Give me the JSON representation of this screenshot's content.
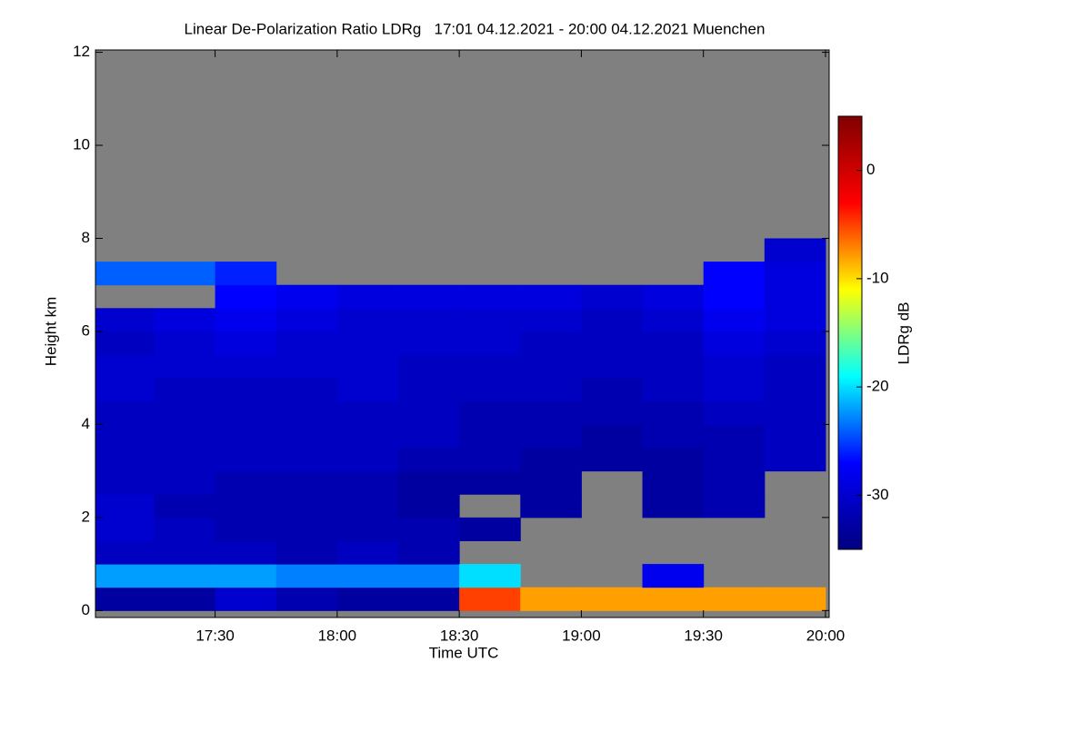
{
  "chart_data": {
    "type": "heatmap",
    "title": "Linear De-Polarization Ratio LDRg   17:01 04.12.2021 - 20:00 04.12.2021 Muenchen",
    "xlabel": "Time UTC",
    "ylabel": "Height km",
    "colorbar_label": "LDRg dB",
    "xlim": [
      17.01,
      20.015
    ],
    "ylim": [
      -0.15,
      12.05
    ],
    "xticks": [
      {
        "value": 17.5,
        "label": "17:30"
      },
      {
        "value": 18,
        "label": "18:00"
      },
      {
        "value": 18.5,
        "label": "18:30"
      },
      {
        "value": 19,
        "label": "19:00"
      },
      {
        "value": 19.5,
        "label": "19:30"
      },
      {
        "value": 20,
        "label": "20:00"
      }
    ],
    "yticks": [
      0,
      2,
      4,
      6,
      8,
      10,
      12
    ],
    "clim": [
      -35,
      5
    ],
    "cticks": [
      0,
      -10,
      -20,
      -30
    ],
    "colormap": [
      "#000080",
      "#0000ff",
      "#00ffff",
      "#ffff00",
      "#ff0000",
      "#800000"
    ],
    "missing_color": "#808080",
    "xbins": [
      17,
      17.25,
      17.5,
      17.75,
      18,
      18.25,
      18.5,
      18.75,
      19,
      19.25,
      19.5,
      19.75,
      20
    ],
    "ybins": [
      0,
      0.5,
      1,
      1.5,
      2,
      2.5,
      3,
      3.5,
      4,
      4.5,
      5,
      5.5,
      6,
      6.5,
      7,
      7.5,
      8
    ],
    "z": [
      [
        -33,
        -22,
        -31,
        -30,
        -30,
        -31,
        -31,
        -31,
        -31,
        -30,
        -30,
        -31,
        -30,
        null,
        -24,
        null
      ],
      [
        -33,
        -22,
        -31,
        -31,
        -32,
        -31,
        -31,
        -31,
        -31,
        -31,
        -30,
        -30,
        -29,
        null,
        -24,
        null
      ],
      [
        -30,
        -22,
        -31,
        -32,
        -32,
        -32,
        -31,
        -31,
        -31,
        -31,
        -30,
        -29,
        -28,
        -27,
        -26,
        null
      ],
      [
        -32,
        -23,
        -32,
        -32,
        -32,
        -32,
        -31,
        -31,
        -31,
        -31,
        -30,
        -30,
        -29,
        -28,
        null,
        null
      ],
      [
        -33,
        -23,
        -31,
        -32,
        -32,
        -32,
        -31,
        -31,
        -31,
        -30,
        -30,
        -30,
        -30,
        -29,
        null,
        null
      ],
      [
        -33,
        -23,
        -32,
        -32,
        -33,
        -33,
        -32,
        -31,
        -31,
        -31,
        -31,
        -30,
        -30,
        -29,
        null,
        null
      ],
      [
        -5,
        -20,
        null,
        -33,
        null,
        -33,
        -32,
        -32,
        -32,
        -31,
        -31,
        -30,
        -30,
        -29,
        null,
        null
      ],
      [
        -8,
        null,
        null,
        null,
        -33,
        -33,
        -33,
        -32,
        -32,
        -31,
        -31,
        -31,
        -30,
        -29,
        null,
        null
      ],
      [
        -8,
        null,
        null,
        null,
        null,
        null,
        -33,
        -33,
        -32,
        -32,
        -31,
        -31,
        -31,
        -30,
        null,
        null
      ],
      [
        -8,
        -28,
        null,
        null,
        -33,
        -33,
        -33,
        -32,
        -32,
        -31,
        -31,
        -31,
        -30,
        -29,
        null,
        null
      ],
      [
        -8,
        null,
        null,
        null,
        -32,
        -32,
        -32,
        -32,
        -31,
        -30,
        -30,
        -29,
        -28,
        -27,
        -27,
        null
      ],
      [
        -8,
        null,
        null,
        null,
        null,
        null,
        -31,
        -31,
        -31,
        -31,
        -31,
        -30,
        -29,
        -29,
        -29,
        -30
      ]
    ]
  }
}
